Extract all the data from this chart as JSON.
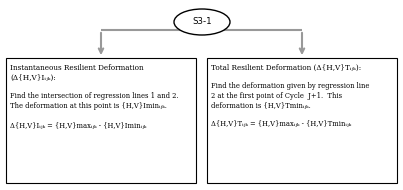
{
  "title_label": "S3-1",
  "bg_color": "#ffffff",
  "box_color": "#000000",
  "text_color": "#000000",
  "connector_color": "#999999",
  "font_size": 5.2,
  "left_box": {
    "title_line1": "Instantaneous Resilient Deformation",
    "title_line2": "(Δ{H,V}Iᵢⱼₖ):",
    "body_line1": "Find the intersection of regression lines 1 and 2.",
    "body_line2": "The deformation at this point is {H,V}Iminᵢⱼₖ.",
    "formula": "Δ{H,V}Iᵢⱼₖ = {H,V}maxᵢⱼₖ - {H,V}Iminᵢⱼₖ"
  },
  "right_box": {
    "title_line1": "Total Resilient Deformation (Δ{H,V}Tᵢⱼₖ):",
    "body_line1": "Find the deformation given by regression line",
    "body_line2": "2 at the first point of Cycle  J+1.  This",
    "body_line3": "deformation is {H,V}Tminᵢⱼₖ.",
    "formula": "Δ{H,V}Tᵢⱼₖ = {H,V}maxᵢⱼₖ - {H,V}Tminᵢⱼₖ"
  }
}
